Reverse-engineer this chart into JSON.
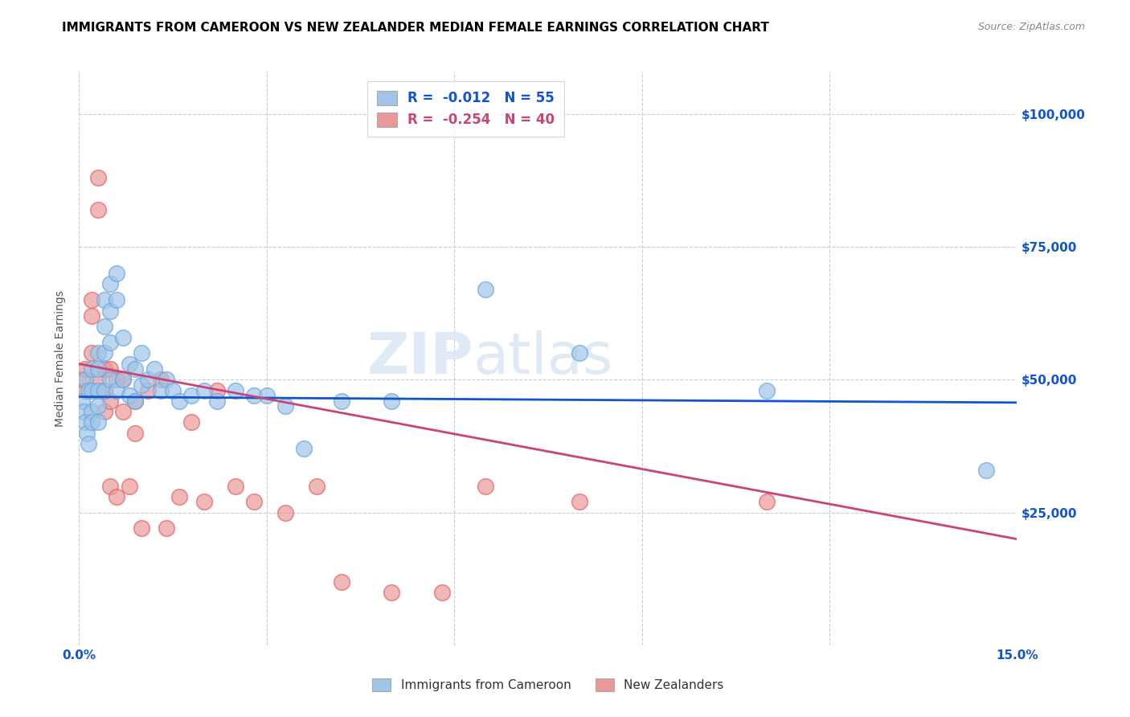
{
  "title": "IMMIGRANTS FROM CAMEROON VS NEW ZEALANDER MEDIAN FEMALE EARNINGS CORRELATION CHART",
  "source": "Source: ZipAtlas.com",
  "ylabel": "Median Female Earnings",
  "y_ticks": [
    0,
    25000,
    50000,
    75000,
    100000
  ],
  "y_tick_labels": [
    "",
    "$25,000",
    "$50,000",
    "$75,000",
    "$100,000"
  ],
  "x_min": 0.0,
  "x_max": 0.15,
  "y_min": 0,
  "y_max": 108000,
  "legend_labels_bottom": [
    "Immigrants from Cameroon",
    "New Zealanders"
  ],
  "blue_color": "#9fc5e8",
  "pink_color": "#ea9999",
  "blue_scatter_edge": "#6fa8dc",
  "pink_scatter_edge": "#e06666",
  "blue_line_color": "#1155cc",
  "pink_line_color": "#cc4477",
  "blue_scatter_x": [
    0.0005,
    0.0007,
    0.001,
    0.0012,
    0.0015,
    0.001,
    0.0015,
    0.002,
    0.002,
    0.002,
    0.002,
    0.003,
    0.003,
    0.003,
    0.003,
    0.003,
    0.004,
    0.004,
    0.004,
    0.004,
    0.005,
    0.005,
    0.005,
    0.005,
    0.006,
    0.006,
    0.006,
    0.007,
    0.007,
    0.008,
    0.008,
    0.009,
    0.009,
    0.01,
    0.01,
    0.011,
    0.012,
    0.013,
    0.014,
    0.015,
    0.016,
    0.018,
    0.02,
    0.022,
    0.025,
    0.028,
    0.03,
    0.033,
    0.036,
    0.042,
    0.05,
    0.065,
    0.08,
    0.11,
    0.145
  ],
  "blue_scatter_y": [
    46000,
    44000,
    42000,
    40000,
    38000,
    50000,
    48000,
    52000,
    48000,
    44000,
    42000,
    55000,
    52000,
    48000,
    45000,
    42000,
    65000,
    60000,
    55000,
    48000,
    68000,
    63000,
    57000,
    50000,
    70000,
    65000,
    48000,
    58000,
    50000,
    53000,
    47000,
    52000,
    46000,
    55000,
    49000,
    50000,
    52000,
    48000,
    50000,
    48000,
    46000,
    47000,
    48000,
    46000,
    48000,
    47000,
    47000,
    45000,
    37000,
    46000,
    46000,
    67000,
    55000,
    48000,
    33000
  ],
  "pink_scatter_x": [
    0.0005,
    0.001,
    0.001,
    0.002,
    0.002,
    0.002,
    0.003,
    0.003,
    0.003,
    0.004,
    0.004,
    0.004,
    0.005,
    0.005,
    0.005,
    0.006,
    0.006,
    0.007,
    0.007,
    0.008,
    0.009,
    0.009,
    0.01,
    0.011,
    0.013,
    0.014,
    0.016,
    0.018,
    0.02,
    0.022,
    0.025,
    0.028,
    0.033,
    0.038,
    0.042,
    0.05,
    0.058,
    0.065,
    0.08,
    0.11
  ],
  "pink_scatter_y": [
    50000,
    52000,
    48000,
    65000,
    62000,
    55000,
    88000,
    82000,
    50000,
    52000,
    48000,
    44000,
    52000,
    46000,
    30000,
    50000,
    28000,
    50000,
    44000,
    30000,
    46000,
    40000,
    22000,
    48000,
    50000,
    22000,
    28000,
    42000,
    27000,
    48000,
    30000,
    27000,
    25000,
    30000,
    12000,
    10000,
    10000,
    30000,
    27000,
    27000
  ],
  "blue_trend_x": [
    0.0,
    0.15
  ],
  "blue_trend_y": [
    46800,
    45700
  ],
  "pink_trend_x": [
    0.0,
    0.15
  ],
  "pink_trend_y": [
    53000,
    20000
  ],
  "watermark_zip": "ZIP",
  "watermark_atlas": "atlas",
  "background_color": "#ffffff",
  "grid_color": "#cccccc",
  "title_color": "#000000",
  "axis_label_color": "#1155cc",
  "title_fontsize": 11,
  "source_fontsize": 9,
  "x_grid_ticks": [
    0.0,
    0.03,
    0.06,
    0.09,
    0.12,
    0.15
  ]
}
